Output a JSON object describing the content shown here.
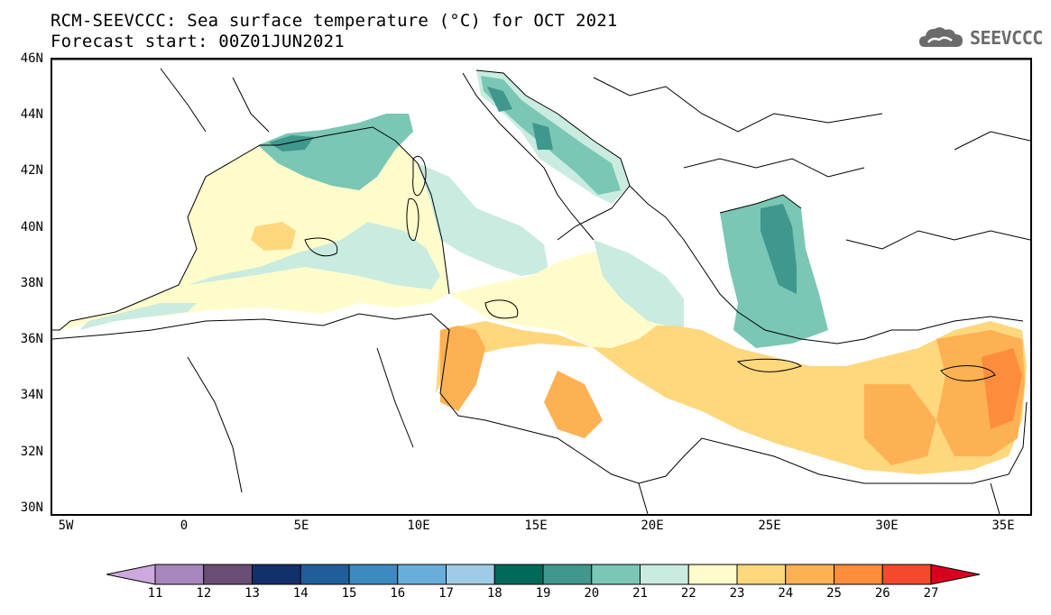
{
  "title": {
    "line1": "RCM-SEEVCCC: Sea surface temperature (°C) for OCT 2021",
    "line2": "Forecast start: 00Z01JUN2021"
  },
  "logo": {
    "text": "SEEVCCC",
    "icon": "cloud-icon"
  },
  "map": {
    "lat_labels": [
      "46N",
      "44N",
      "42N",
      "40N",
      "38N",
      "36N",
      "34N",
      "32N",
      "30N"
    ],
    "lon_labels": [
      "5W",
      "0",
      "5E",
      "10E",
      "15E",
      "20E",
      "25E",
      "30E",
      "35E"
    ],
    "lat_range": [
      30,
      46
    ],
    "lon_range": [
      -5.5,
      36.5
    ]
  },
  "colorbar": {
    "labels": [
      "11",
      "12",
      "13",
      "14",
      "15",
      "16",
      "17",
      "18",
      "19",
      "20",
      "21",
      "22",
      "23",
      "24",
      "25",
      "26",
      "27"
    ],
    "colors": [
      "#cda9dd",
      "#a985be",
      "#6a4d75",
      "#12306b",
      "#1f5e9b",
      "#3c8ac0",
      "#69aedb",
      "#9fcbe6",
      "#006a5a",
      "#3f978d",
      "#79c7b4",
      "#c9ebe0",
      "#fffccb",
      "#ffd77d",
      "#fdb153",
      "#fd8d3c",
      "#f5492d",
      "#d9001f"
    ]
  },
  "colors": {
    "land": "#ffffff",
    "coast": "#000000",
    "logo": "#6b6b6b"
  }
}
